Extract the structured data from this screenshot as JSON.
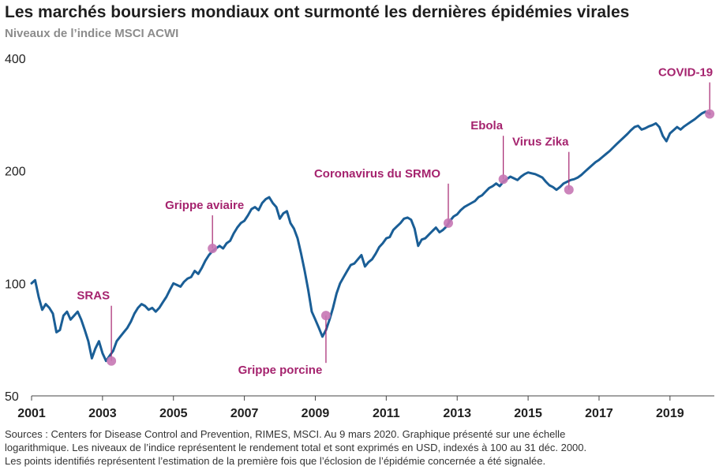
{
  "chart_data": {
    "type": "line",
    "title": "Les marchés boursiers mondiaux ont surmonté les dernières épidémies virales",
    "subtitle": "Niveaux de l’indice MSCI ACWI",
    "xlabel": "",
    "ylabel": "",
    "yscale": "log",
    "ylim": [
      50,
      400
    ],
    "y_ticks": [
      400,
      200,
      100,
      50
    ],
    "xlim": [
      2001,
      2020.25
    ],
    "x_ticks": [
      "2001",
      "2003",
      "2005",
      "2007",
      "2009",
      "2011",
      "2013",
      "2015",
      "2017",
      "2019"
    ],
    "grid": false,
    "line_color": "#1a5e96",
    "marker_color": "#c777b4",
    "annotation_color": "#a5236e",
    "series": [
      {
        "x": [
          2001.0,
          2001.1,
          2001.2,
          2001.3,
          2001.4,
          2001.5,
          2001.6,
          2001.7,
          2001.8,
          2001.9,
          2002.0,
          2002.1,
          2002.2,
          2002.3,
          2002.4,
          2002.5,
          2002.6,
          2002.7,
          2002.8,
          2002.9,
          2003.0,
          2003.1,
          2003.2,
          2003.3,
          2003.4,
          2003.5,
          2003.6,
          2003.7,
          2003.8,
          2003.9,
          2004.0,
          2004.1,
          2004.2,
          2004.3,
          2004.4,
          2004.5,
          2004.6,
          2004.7,
          2004.8,
          2004.9,
          2005.0,
          2005.1,
          2005.2,
          2005.3,
          2005.4,
          2005.5,
          2005.6,
          2005.7,
          2005.8,
          2005.9,
          2006.0,
          2006.1,
          2006.2,
          2006.3,
          2006.4,
          2006.5,
          2006.6,
          2006.7,
          2006.8,
          2006.9,
          2007.0,
          2007.1,
          2007.2,
          2007.3,
          2007.4,
          2007.5,
          2007.6,
          2007.7,
          2007.8,
          2007.9,
          2008.0,
          2008.1,
          2008.2,
          2008.3,
          2008.4,
          2008.5,
          2008.6,
          2008.7,
          2008.8,
          2008.9,
          2009.0,
          2009.1,
          2009.2,
          2009.3,
          2009.4,
          2009.5,
          2009.6,
          2009.7,
          2009.8,
          2009.9,
          2010.0,
          2010.1,
          2010.2,
          2010.3,
          2010.4,
          2010.5,
          2010.6,
          2010.7,
          2010.8,
          2010.9,
          2011.0,
          2011.1,
          2011.2,
          2011.3,
          2011.4,
          2011.5,
          2011.6,
          2011.7,
          2011.8,
          2011.9,
          2012.0,
          2012.1,
          2012.2,
          2012.3,
          2012.4,
          2012.5,
          2012.6,
          2012.7,
          2012.8,
          2012.9,
          2013.0,
          2013.1,
          2013.2,
          2013.3,
          2013.4,
          2013.5,
          2013.6,
          2013.7,
          2013.8,
          2013.9,
          2014.0,
          2014.1,
          2014.2,
          2014.3,
          2014.4,
          2014.5,
          2014.6,
          2014.7,
          2014.8,
          2014.9,
          2015.0,
          2015.1,
          2015.2,
          2015.3,
          2015.4,
          2015.5,
          2015.6,
          2015.7,
          2015.8,
          2015.9,
          2016.0,
          2016.1,
          2016.2,
          2016.3,
          2016.4,
          2016.5,
          2016.6,
          2016.7,
          2016.8,
          2016.9,
          2017.0,
          2017.1,
          2017.2,
          2017.3,
          2017.4,
          2017.5,
          2017.6,
          2017.7,
          2017.8,
          2017.9,
          2018.0,
          2018.1,
          2018.2,
          2018.3,
          2018.4,
          2018.5,
          2018.6,
          2018.7,
          2018.8,
          2018.9,
          2019.0,
          2019.1,
          2019.2,
          2019.3,
          2019.4,
          2019.5,
          2019.6,
          2019.7,
          2019.8,
          2019.9,
          2020.0,
          2020.12
        ],
        "values": [
          100,
          102,
          92,
          85,
          88,
          86,
          83,
          74,
          75,
          82,
          84,
          80,
          82,
          84,
          80,
          75,
          70,
          63,
          67,
          70,
          65,
          62,
          64,
          66,
          70,
          72,
          74,
          76,
          79,
          83,
          86,
          88,
          87,
          85,
          86,
          84,
          86,
          89,
          92,
          96,
          100,
          99,
          98,
          101,
          103,
          104,
          108,
          106,
          110,
          115,
          119,
          122,
          124,
          126,
          124,
          128,
          130,
          136,
          141,
          145,
          147,
          152,
          158,
          160,
          157,
          164,
          168,
          170,
          164,
          160,
          149,
          154,
          156,
          145,
          140,
          132,
          120,
          108,
          96,
          84,
          80,
          76,
          72,
          75,
          80,
          86,
          94,
          100,
          104,
          108,
          112,
          113,
          116,
          119,
          111,
          114,
          116,
          120,
          125,
          128,
          132,
          133,
          139,
          142,
          145,
          149,
          150,
          148,
          140,
          126,
          131,
          132,
          135,
          138,
          141,
          137,
          139,
          142,
          147,
          151,
          153,
          157,
          160,
          162,
          164,
          166,
          170,
          172,
          176,
          180,
          182,
          185,
          182,
          187,
          190,
          193,
          191,
          189,
          193,
          196,
          198,
          197,
          196,
          194,
          192,
          187,
          183,
          181,
          178,
          181,
          185,
          187,
          189,
          190,
          192,
          195,
          199,
          203,
          207,
          211,
          214,
          218,
          222,
          226,
          231,
          236,
          241,
          246,
          251,
          257,
          262,
          264,
          258,
          260,
          263,
          265,
          268,
          262,
          248,
          240,
          252,
          257,
          262,
          258,
          263,
          267,
          271,
          275,
          280,
          285,
          288,
          284
        ]
      }
    ],
    "annotations": [
      {
        "label": "SRAS",
        "x": 2003.25,
        "y": 62
      },
      {
        "label": "Grippe aviaire",
        "x": 2006.1,
        "y": 124
      },
      {
        "label": "Grippe porcine",
        "x": 2009.3,
        "y": 82
      },
      {
        "label": "Coronavirus du SRMO",
        "x": 2012.75,
        "y": 145
      },
      {
        "label": "Ebola",
        "x": 2014.3,
        "y": 190
      },
      {
        "label": "Virus Zika",
        "x": 2016.15,
        "y": 178
      },
      {
        "label": "COVID-19",
        "x": 2020.12,
        "y": 284
      }
    ]
  },
  "footer": {
    "line1": "Sources : Centers for Disease Control and Prevention, RIMES, MSCI. Au 9 mars 2020. Graphique présenté sur une échelle",
    "line2": "logarithmique. Les niveaux de l’indice représentent le rendement total et sont exprimés en USD, indexés à 100 au 31 déc. 2000.",
    "line3": "Les points identifiés représentent l’estimation de la première fois que l’éclosion de l’épidémie concernée a été signalée."
  }
}
